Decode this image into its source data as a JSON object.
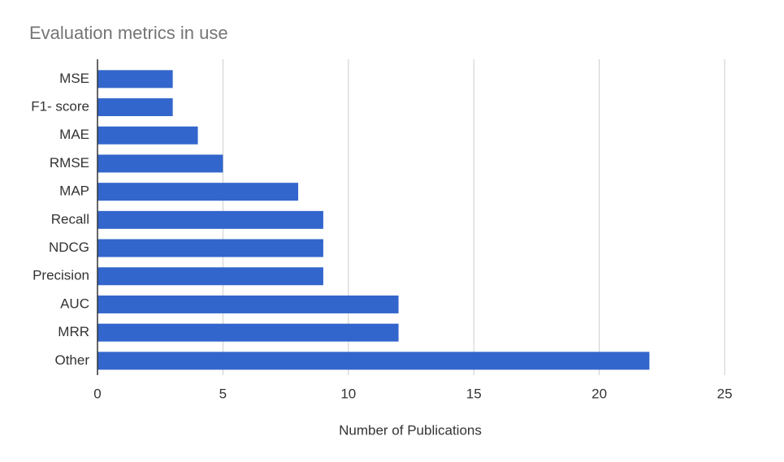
{
  "chart_data": {
    "type": "bar",
    "orientation": "horizontal",
    "title": "Evaluation metrics in use",
    "x_label": "Number of Publications",
    "categories": [
      "MSE",
      "F1- score",
      "MAE",
      "RMSE",
      "MAP",
      "Recall",
      "NDCG",
      "Precision",
      "AUC",
      "MRR",
      "Other"
    ],
    "values": [
      3,
      3,
      4,
      5,
      8,
      9,
      9,
      9,
      12,
      12,
      22
    ],
    "color": "#3366cc",
    "xlim": [
      0,
      25
    ],
    "xticks": [
      0,
      5,
      10,
      15,
      20,
      25
    ],
    "grid": true
  }
}
